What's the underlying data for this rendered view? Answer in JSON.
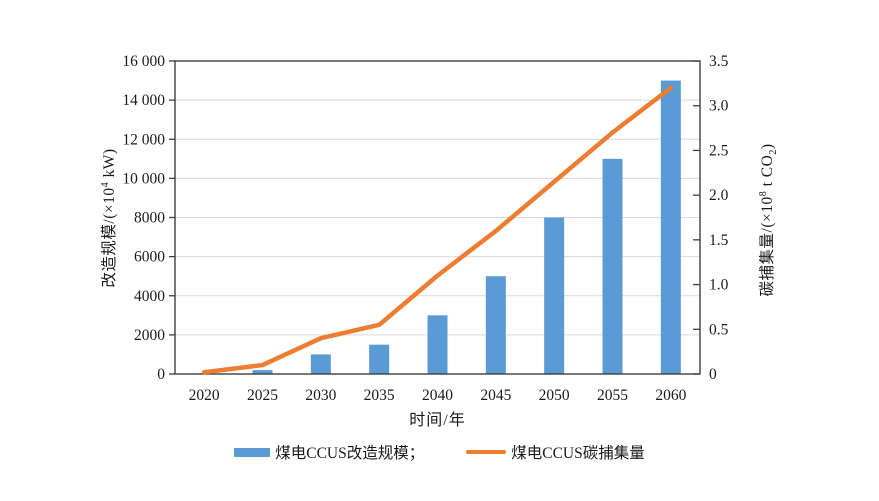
{
  "chart_data": {
    "type": "bar+line",
    "title": "",
    "categories": [
      "2020",
      "2025",
      "2030",
      "2035",
      "2040",
      "2045",
      "2050",
      "2055",
      "2060"
    ],
    "xlabel": "时间/年",
    "series": [
      {
        "name": "煤电CCUS改造规模",
        "chart": "bar",
        "axis": "left",
        "color": "#5B9BD5",
        "values": [
          0,
          200,
          1000,
          1500,
          3000,
          5000,
          8000,
          11000,
          15000
        ]
      },
      {
        "name": "煤电CCUS碳捕集量",
        "chart": "line",
        "axis": "right",
        "color": "#ED7D31",
        "values": [
          0.02,
          0.1,
          0.4,
          0.55,
          1.1,
          1.6,
          2.15,
          2.7,
          3.2
        ]
      }
    ],
    "left_axis": {
      "label_prefix": "改造规模/(×10",
      "label_sup": "4",
      "label_suffix": " kW)",
      "min": 0,
      "max": 16000,
      "tick_step": 2000,
      "tick_labels": [
        "0",
        "2000",
        "4000",
        "6000",
        "8000",
        "10 000",
        "12 000",
        "14 000",
        "16 000"
      ]
    },
    "right_axis": {
      "label_prefix": "碳捕集量/(×10",
      "label_sup": "8",
      "label_mid": " t CO",
      "label_sub": "2",
      "label_suffix": ")",
      "min": 0,
      "max": 3.5,
      "tick_step": 0.5,
      "tick_labels": [
        "0",
        "0.5",
        "1.0",
        "1.5",
        "2.0",
        "2.5",
        "3.0",
        "3.5"
      ]
    },
    "grid": true,
    "legend_position": "bottom",
    "legend": [
      {
        "label": "煤电CCUS改造规模；",
        "swatch": "bar",
        "color": "#5B9BD5"
      },
      {
        "label": "煤电CCUS碳捕集量",
        "swatch": "line",
        "color": "#ED7D31"
      }
    ]
  },
  "colors": {
    "bar": "#5B9BD5",
    "line": "#ED7D31",
    "axis": "#3F3F3F",
    "grid": "#D9D9D9",
    "text": "#1A1A1A",
    "background": "#FFFFFF"
  }
}
